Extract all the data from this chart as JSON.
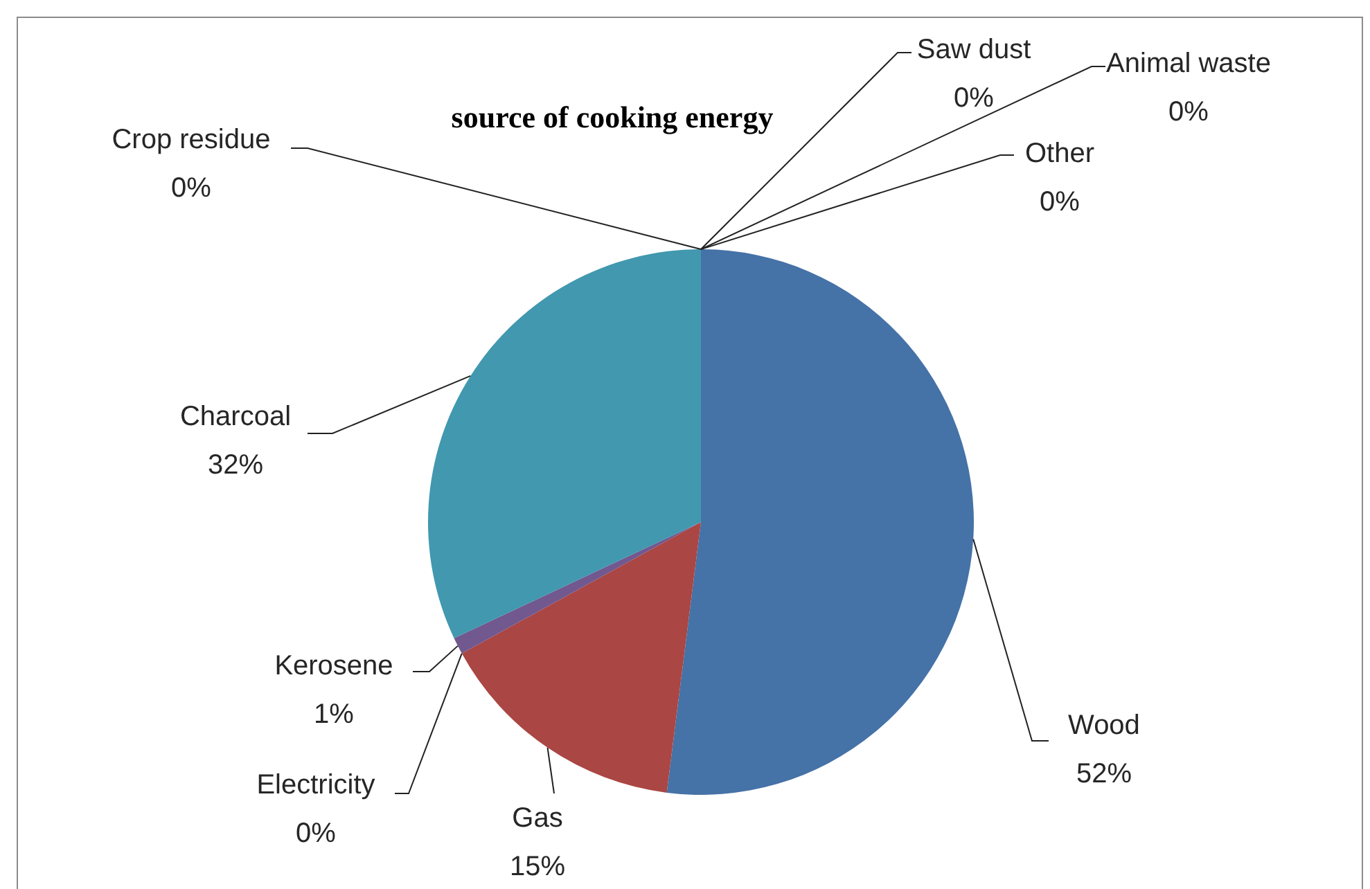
{
  "chart_data": {
    "type": "pie",
    "title": "source of cooking energy",
    "categories": [
      "Wood",
      "Gas",
      "Electricity",
      "Kerosene",
      "Charcoal",
      "Crop residue",
      "Saw dust",
      "Animal waste",
      "Other"
    ],
    "values": [
      52,
      15,
      0,
      1,
      32,
      0,
      0,
      0,
      0
    ],
    "value_labels": [
      "52%",
      "15%",
      "0%",
      "1%",
      "32%",
      "0%",
      "0%",
      "0%",
      "0%"
    ],
    "colors": [
      "#4572a7",
      "#aa4643",
      "#89a54e",
      "#71588f",
      "#4198af",
      "#db843d",
      "#93a9cf",
      "#d19392",
      "#b9cd96"
    ]
  }
}
